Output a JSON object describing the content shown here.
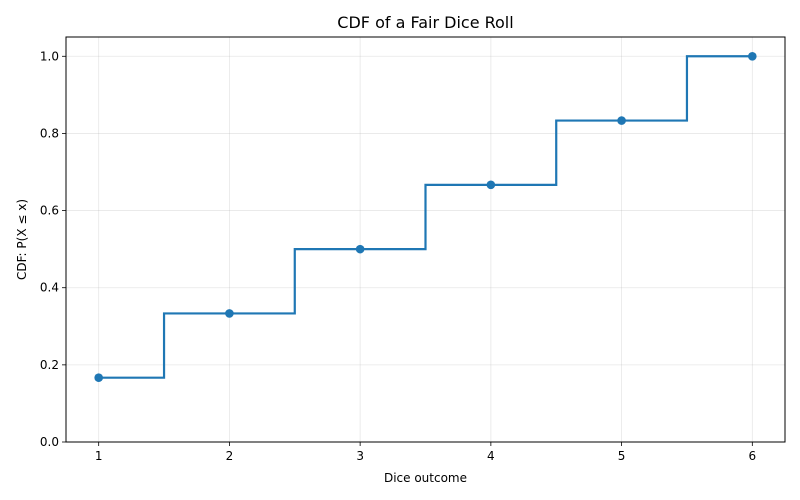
{
  "chart_data": {
    "type": "line",
    "subtype": "step",
    "step_where": "mid",
    "title": "CDF of a Fair Dice Roll",
    "xlabel": "Dice outcome",
    "ylabel": "CDF: P(X ≤ x)",
    "x": [
      1,
      2,
      3,
      4,
      5,
      6
    ],
    "series": [
      {
        "name": "CDF",
        "values": [
          0.1667,
          0.3333,
          0.5,
          0.6667,
          0.8333,
          1.0
        ],
        "color": "#1f77b4",
        "markers": true
      }
    ],
    "xticks": [
      1,
      2,
      3,
      4,
      5,
      6
    ],
    "xtick_labels": [
      "1",
      "2",
      "3",
      "4",
      "5",
      "6"
    ],
    "yticks": [
      0.0,
      0.2,
      0.4,
      0.6,
      0.8,
      1.0
    ],
    "ytick_labels": [
      "0.0",
      "0.2",
      "0.4",
      "0.6",
      "0.8",
      "1.0"
    ],
    "xlim": [
      0.75,
      6.25
    ],
    "ylim": [
      0.0,
      1.05
    ],
    "grid": true,
    "legend": null
  }
}
